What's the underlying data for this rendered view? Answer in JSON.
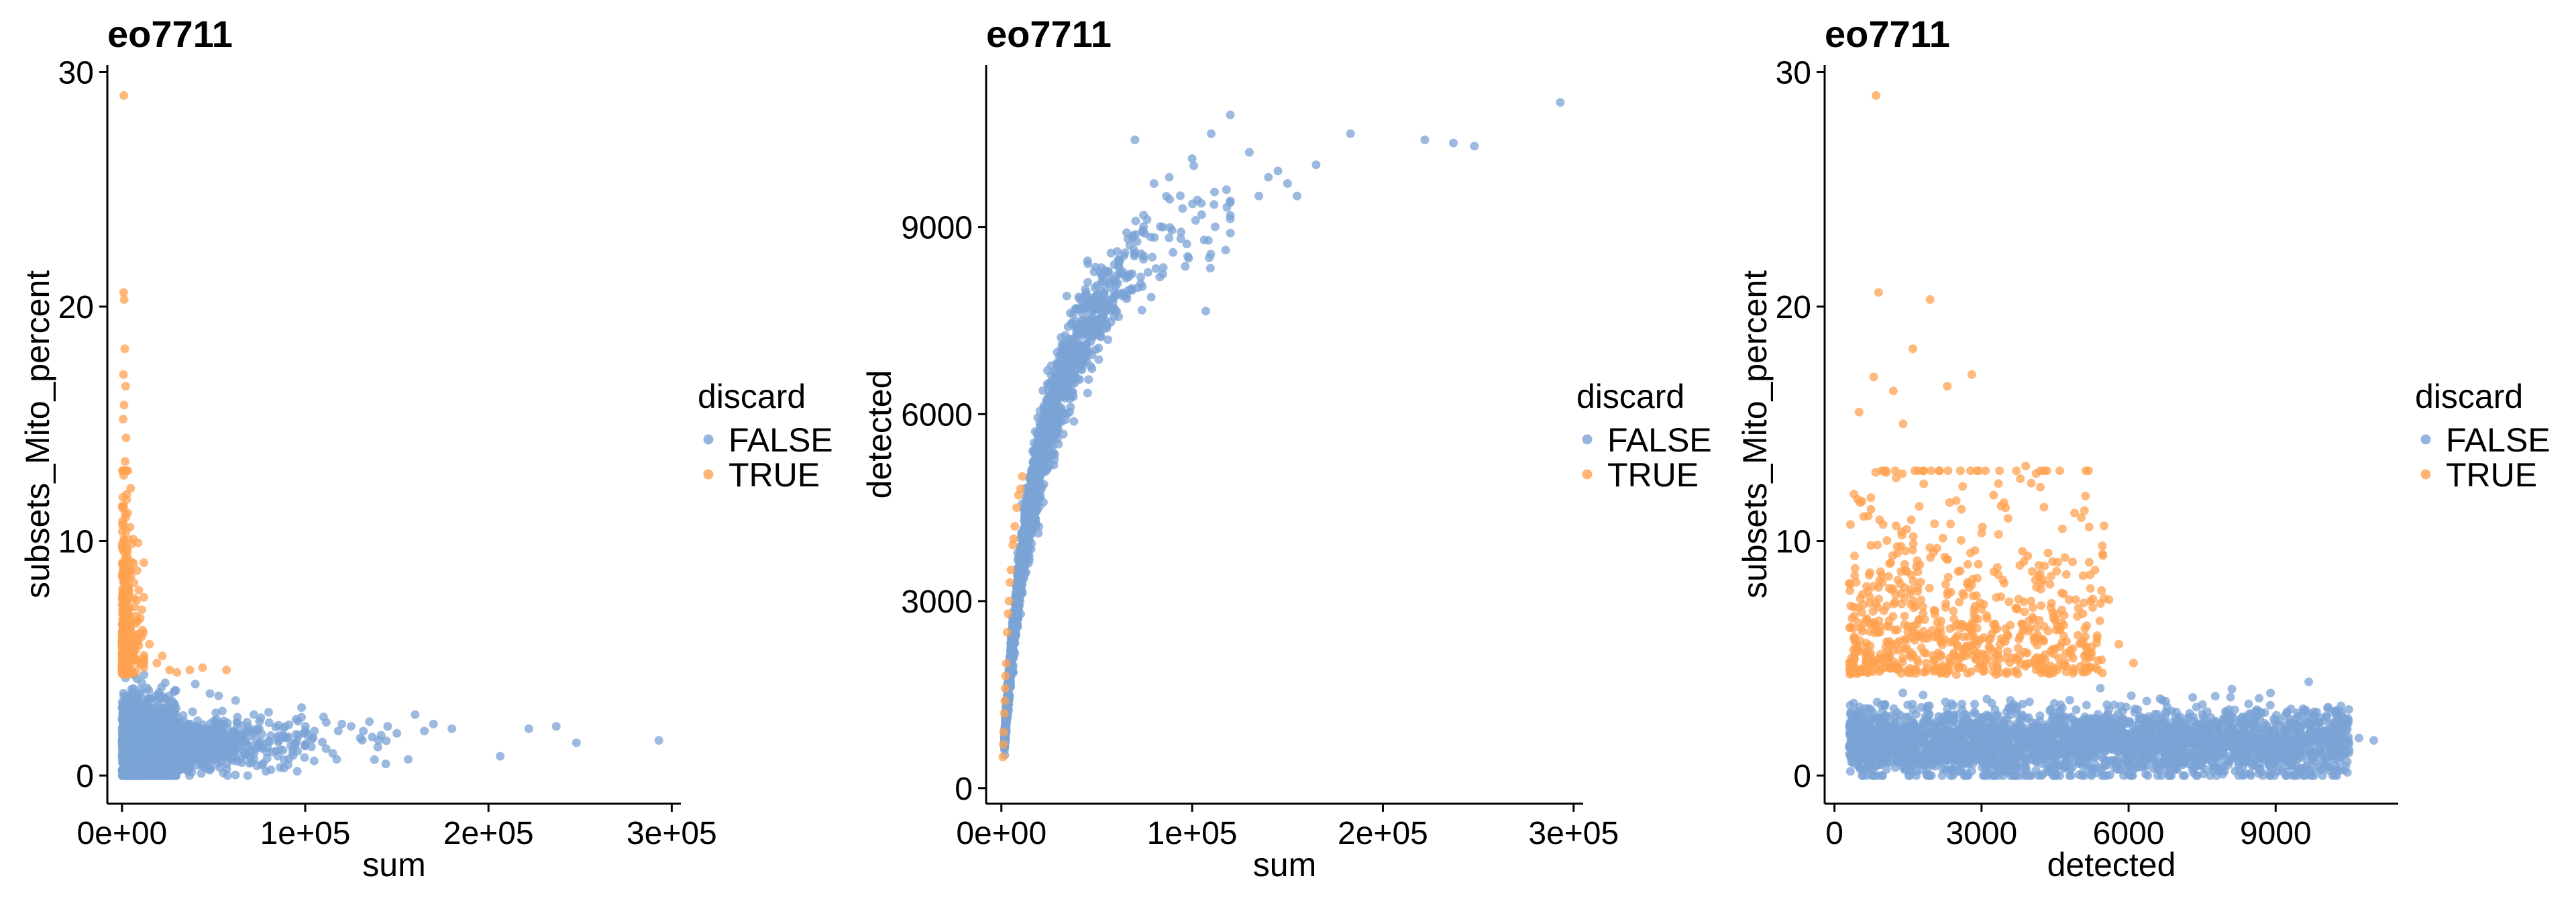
{
  "colors": {
    "false": "#7BA3D6",
    "true": "#FFA150",
    "axis": "#000000",
    "background": "#ffffff"
  },
  "chart_data": [
    {
      "type": "scatter",
      "title": "eo7711",
      "xlabel": "sum",
      "ylabel": "subsets_Mito_percent",
      "xlim": [
        -8000,
        305000
      ],
      "ylim": [
        -1.2,
        30.3
      ],
      "xticks": [
        0,
        100000,
        200000,
        300000
      ],
      "xtick_labels": [
        "0e+00",
        "1e+05",
        "2e+05",
        "3e+05"
      ],
      "yticks": [
        0,
        10,
        20,
        30
      ],
      "ytick_labels": [
        "0",
        "10",
        "20",
        "30"
      ],
      "grid": false,
      "legend": {
        "title": "discard",
        "position": "right",
        "entries": [
          {
            "label": "FALSE",
            "color": "#7BA3D6"
          },
          {
            "label": "TRUE",
            "color": "#FFA150"
          }
        ]
      },
      "series": [
        {
          "name": "FALSE",
          "points": [
            [
              120000,
              2.2
            ],
            [
              130000,
              1.6
            ],
            [
              145000,
              2.1
            ],
            [
              160000,
              2.6
            ],
            [
              165000,
              1.9
            ],
            [
              180000,
              2.0
            ],
            [
              222000,
              2.0
            ],
            [
              237000,
              2.1
            ],
            [
              248000,
              1.4
            ],
            [
              293000,
              1.5
            ],
            [
              95000,
              2.4
            ],
            [
              100000,
              1.3
            ],
            [
              110000,
              2.5
            ],
            [
              105000,
              1.9
            ],
            [
              88000,
              2.0
            ],
            [
              75000,
              2.3
            ],
            [
              70000,
              1.7
            ],
            [
              62000,
              3.2
            ],
            [
              55000,
              2.2
            ],
            [
              80000,
              2.7
            ],
            [
              48000,
              3.5
            ],
            [
              40000,
              3.9
            ],
            [
              50000,
              1.1
            ],
            [
              67000,
              1.4
            ],
            [
              72000,
              2.6
            ],
            [
              90000,
              1.6
            ],
            [
              118000,
              1.9
            ],
            [
              135000,
              2.3
            ],
            [
              150000,
              1.8
            ],
            [
              170000,
              2.2
            ],
            [
              125000,
              2.1
            ],
            [
              140000,
              1.5
            ],
            [
              98000,
              2.9
            ]
          ],
          "cluster": {
            "x_scale": 22000,
            "x_max": 300000,
            "y_mean": 1.3,
            "y_spread": 1.0,
            "y_min": 0,
            "y_max": 4.3,
            "count": 2200
          }
        },
        {
          "name": "TRUE",
          "points": [
            [
              1000,
              29.0
            ],
            [
              900,
              20.6
            ],
            [
              1200,
              20.3
            ],
            [
              1500,
              18.2
            ],
            [
              800,
              17.1
            ],
            [
              2000,
              16.6
            ],
            [
              1100,
              15.8
            ],
            [
              600,
              15.2
            ],
            [
              2200,
              14.4
            ],
            [
              1700,
              13.4
            ],
            [
              900,
              12.8
            ],
            [
              2600,
              12.0
            ],
            [
              22000,
              5.1
            ],
            [
              26000,
              4.5
            ],
            [
              37000,
              4.5
            ],
            [
              44000,
              4.6
            ],
            [
              30000,
              4.4
            ],
            [
              57000,
              4.5
            ],
            [
              19000,
              4.8
            ],
            [
              15000,
              5.6
            ]
          ],
          "cluster": {
            "x_scale": 2500,
            "x_max": 12000,
            "y_min": 4.3,
            "y_decay": 2.2,
            "y_max": 13,
            "count": 420
          }
        }
      ]
    },
    {
      "type": "scatter",
      "title": "eo7711",
      "xlabel": "sum",
      "ylabel": "detected",
      "xlim": [
        -8000,
        305000
      ],
      "ylim": [
        -250,
        11600
      ],
      "xticks": [
        0,
        100000,
        200000,
        300000
      ],
      "xtick_labels": [
        "0e+00",
        "1e+05",
        "2e+05",
        "3e+05"
      ],
      "yticks": [
        0,
        3000,
        6000,
        9000
      ],
      "ytick_labels": [
        "0",
        "3000",
        "6000",
        "9000"
      ],
      "grid": false,
      "legend": {
        "title": "discard",
        "position": "right",
        "entries": [
          {
            "label": "FALSE",
            "color": "#7BA3D6"
          },
          {
            "label": "TRUE",
            "color": "#FFA150"
          }
        ]
      },
      "series": [
        {
          "name": "FALSE",
          "points": [
            [
              293000,
              11000
            ],
            [
              248000,
              10300
            ],
            [
              237000,
              10350
            ],
            [
              222000,
              10400
            ],
            [
              183000,
              10500
            ],
            [
              165000,
              10000
            ],
            [
              120000,
              10800
            ],
            [
              130000,
              10200
            ],
            [
              140000,
              9800
            ],
            [
              150000,
              9700
            ],
            [
              155000,
              9500
            ],
            [
              110000,
              10500
            ],
            [
              100000,
              10100
            ],
            [
              95000,
              9300
            ],
            [
              70000,
              10400
            ],
            [
              68000,
              8000
            ],
            [
              80000,
              9700
            ],
            [
              88000,
              9800
            ],
            [
              105000,
              9200
            ],
            [
              118000,
              9600
            ],
            [
              145000,
              9900
            ],
            [
              135000,
              9500
            ]
          ],
          "curve": {
            "a": 11000,
            "k": 22000,
            "x_scale": 20000,
            "x_max": 120000,
            "count": 1900,
            "jitter": 450
          }
        },
        {
          "name": "TRUE",
          "points": [
            [
              9000,
              4700
            ],
            [
              11000,
              5000
            ],
            [
              8000,
              4500
            ],
            [
              7000,
              4200
            ],
            [
              6000,
              3900
            ],
            [
              5000,
              3500
            ],
            [
              4000,
              3000
            ],
            [
              3000,
              2500
            ],
            [
              2500,
              2000
            ],
            [
              2000,
              1600
            ],
            [
              1500,
              1200
            ],
            [
              1200,
              900
            ],
            [
              1000,
              700
            ],
            [
              800,
              500
            ],
            [
              3500,
              2800
            ],
            [
              4500,
              3300
            ],
            [
              6500,
              4000
            ],
            [
              10000,
              4800
            ],
            [
              2200,
              1800
            ],
            [
              1800,
              1400
            ]
          ]
        }
      ]
    },
    {
      "type": "scatter",
      "title": "eo7711",
      "xlabel": "detected",
      "ylabel": "subsets_Mito_percent",
      "xlim": [
        -200,
        11500
      ],
      "ylim": [
        -1.2,
        30.3
      ],
      "xticks": [
        0,
        3000,
        6000,
        9000
      ],
      "xtick_labels": [
        "0",
        "3000",
        "6000",
        "9000"
      ],
      "yticks": [
        0,
        10,
        20,
        30
      ],
      "ytick_labels": [
        "0",
        "10",
        "20",
        "30"
      ],
      "grid": false,
      "legend": {
        "title": "discard",
        "position": "right",
        "entries": [
          {
            "label": "FALSE",
            "color": "#7BA3D6"
          },
          {
            "label": "TRUE",
            "color": "#FFA150"
          }
        ]
      },
      "series": [
        {
          "name": "FALSE",
          "points": [
            [
              10400,
              2.4
            ],
            [
              10700,
              1.6
            ],
            [
              11000,
              1.5
            ],
            [
              10100,
              2.2
            ],
            [
              9800,
              2.6
            ],
            [
              9500,
              1.2
            ],
            [
              10200,
              1.8
            ],
            [
              10500,
              1.1
            ],
            [
              9900,
              0.9
            ]
          ],
          "cluster": {
            "x_min": 300,
            "x_max": 10500,
            "y_mean": 1.4,
            "y_spread": 1.0,
            "y_min": 0,
            "y_max": 4.3,
            "count": 2800
          }
        },
        {
          "name": "TRUE",
          "points": [
            [
              850,
              29.0
            ],
            [
              900,
              20.6
            ],
            [
              1950,
              20.3
            ],
            [
              1600,
              18.2
            ],
            [
              2800,
              17.1
            ],
            [
              800,
              17.0
            ],
            [
              1200,
              16.4
            ],
            [
              2300,
              16.6
            ],
            [
              500,
              15.5
            ],
            [
              1400,
              15.0
            ],
            [
              3900,
              13.2
            ],
            [
              2900,
              13.0
            ],
            [
              4200,
              12.3
            ],
            [
              3400,
              11.5
            ],
            [
              5100,
              11.3
            ],
            [
              4700,
              9.3
            ],
            [
              5600,
              7.5
            ],
            [
              6100,
              4.8
            ],
            [
              5800,
              5.6
            ],
            [
              400,
              12.0
            ]
          ],
          "cluster": {
            "x_min": 300,
            "x_max": 5500,
            "y_min": 4.3,
            "y_decay": 2.5,
            "y_max": 13,
            "count": 700
          }
        }
      ]
    }
  ]
}
